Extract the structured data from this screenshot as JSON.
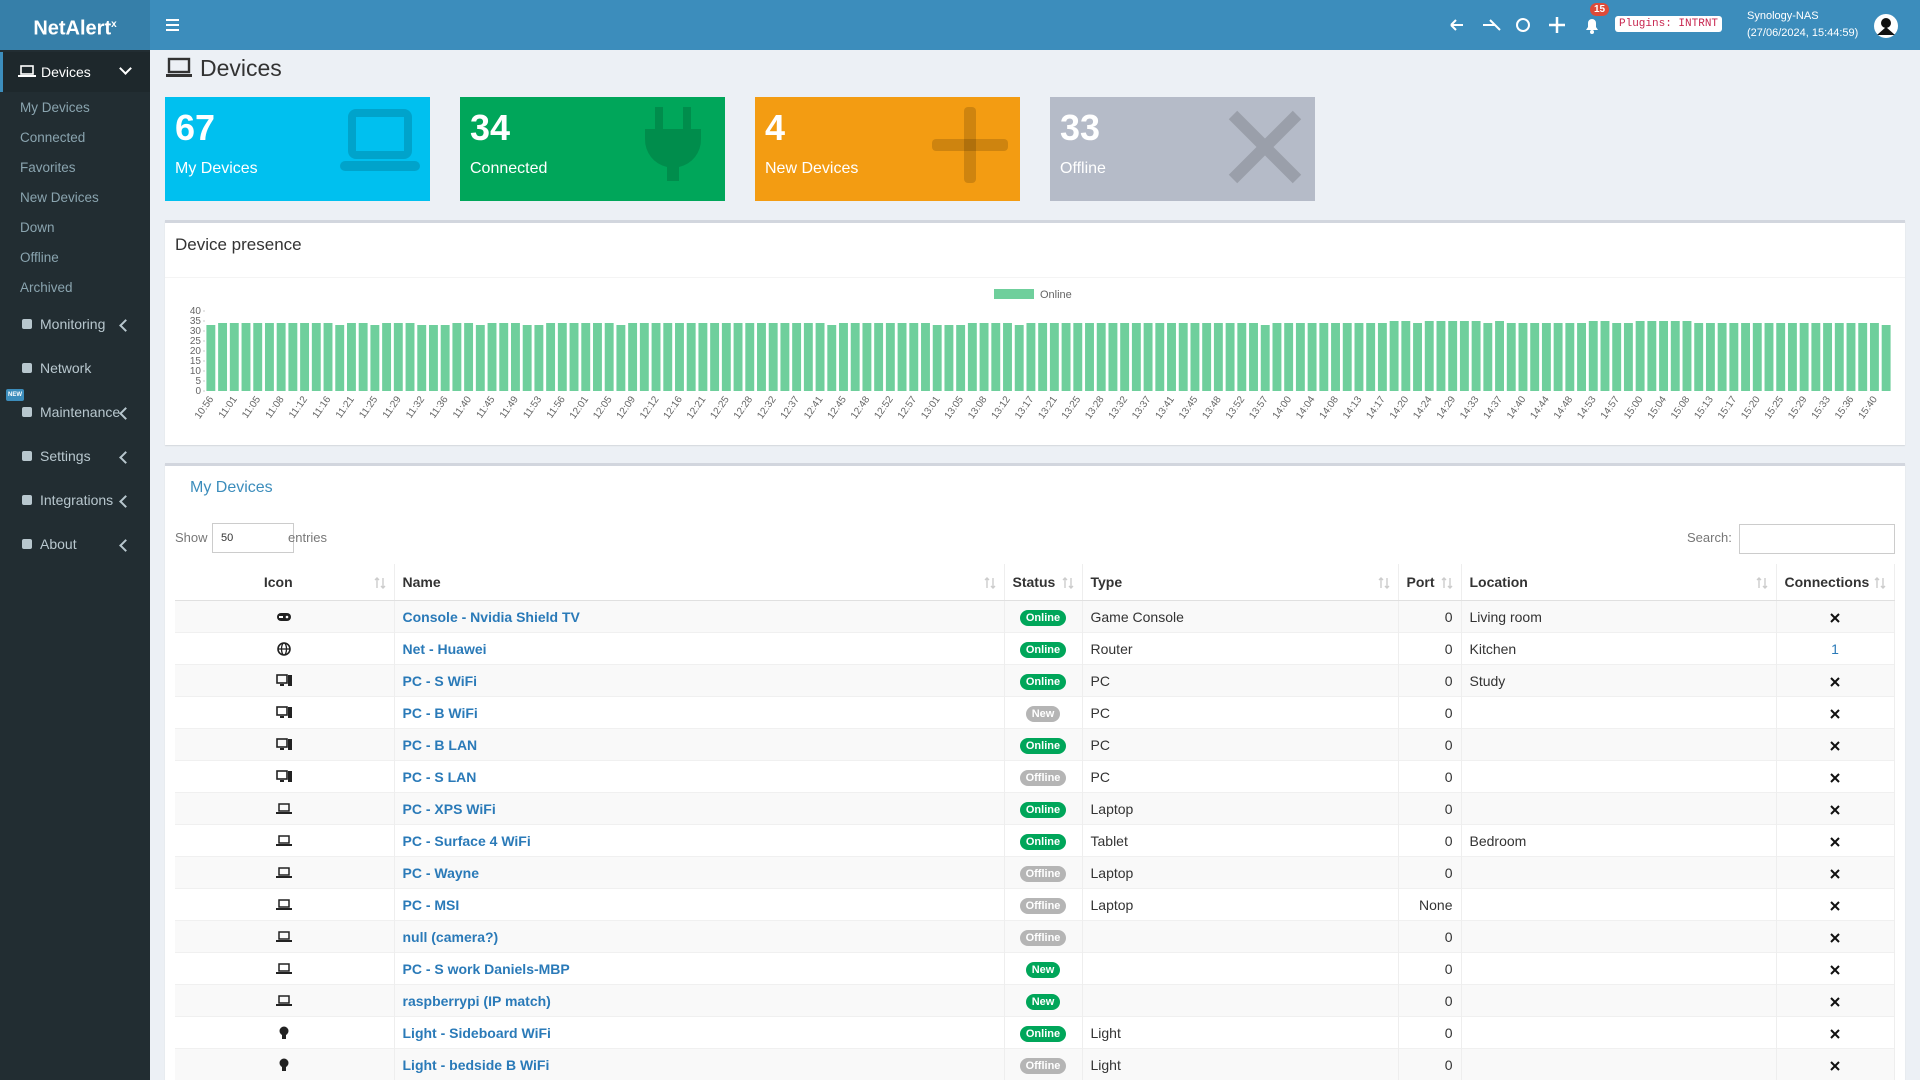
{
  "header": {
    "logo": "NetAlert",
    "logo_sup": "x",
    "notifications": 15,
    "plugins_badge": "Plugins: INTRNT",
    "host": "Synology-NAS",
    "datetime": "(27/06/2024, 15:44:59)"
  },
  "sidebar": {
    "devices": "Devices",
    "items": [
      "My Devices",
      "Connected",
      "Favorites",
      "New Devices",
      "Down",
      "Offline",
      "Archived"
    ],
    "sections": [
      "Monitoring",
      "Network",
      "Maintenance",
      "Settings",
      "Integrations",
      "About"
    ],
    "new_badge": "NEW"
  },
  "page_title": "Devices",
  "stats": [
    {
      "value": 67,
      "label": "My Devices"
    },
    {
      "value": 34,
      "label": "Connected"
    },
    {
      "value": 4,
      "label": "New Devices"
    },
    {
      "value": 33,
      "label": "Offline"
    }
  ],
  "chart_data": {
    "type": "bar",
    "title": "Device presence",
    "categories": [
      "10:56",
      null,
      "11:01",
      null,
      "11:05",
      null,
      "11:08",
      null,
      "11:12",
      null,
      "11:16",
      null,
      "11:21",
      null,
      "11:25",
      null,
      "11:29",
      null,
      "11:32",
      null,
      "11:36",
      null,
      "11:40",
      null,
      "11:45",
      null,
      "11:49",
      null,
      "11:53",
      null,
      "11:56",
      null,
      "12:01",
      null,
      "12:05",
      null,
      "12:09",
      null,
      "12:12",
      null,
      "12:16",
      null,
      "12:21",
      null,
      "12:25",
      null,
      "12:28",
      null,
      "12:32",
      null,
      "12:37",
      null,
      "12:41",
      null,
      "12:45",
      null,
      "12:48",
      null,
      "12:52",
      null,
      "12:57",
      null,
      "13:01",
      null,
      "13:05",
      null,
      "13:08",
      null,
      "13:12",
      null,
      "13:17",
      null,
      "13:21",
      null,
      "13:25",
      null,
      "13:28",
      null,
      "13:32",
      null,
      "13:37",
      null,
      "13:41",
      null,
      "13:45",
      null,
      "13:48",
      null,
      "13:52",
      null,
      "13:57",
      null,
      "14:00",
      null,
      "14:04",
      null,
      "14:08",
      null,
      "14:13",
      null,
      "14:17",
      null,
      "14:20",
      null,
      "14:24",
      null,
      "14:29",
      null,
      "14:33",
      null,
      "14:37",
      null,
      "14:40",
      null,
      "14:44",
      null,
      "14:48",
      null,
      "14:53",
      null,
      "14:57",
      null,
      "15:00",
      null,
      "15:04",
      null,
      "15:08",
      null,
      "15:13",
      null,
      "15:17",
      null,
      "15:20",
      null,
      "15:25",
      null,
      "15:29",
      null,
      "15:33",
      null,
      "15:36",
      null,
      "15:40",
      null
    ],
    "series": [
      {
        "name": "Online",
        "color": "#6fcf9c",
        "values": [
          33,
          34,
          34,
          34,
          34,
          34,
          34,
          34,
          34,
          34,
          34,
          33,
          34,
          34,
          33,
          34,
          34,
          34,
          33,
          33,
          33,
          34,
          34,
          33,
          34,
          34,
          34,
          33,
          33,
          34,
          34,
          34,
          34,
          34,
          34,
          33,
          34,
          34,
          34,
          34,
          34,
          34,
          34,
          34,
          34,
          34,
          34,
          34,
          34,
          34,
          34,
          34,
          34,
          33,
          34,
          34,
          34,
          34,
          34,
          34,
          34,
          34,
          33,
          33,
          33,
          34,
          34,
          34,
          34,
          33,
          34,
          34,
          34,
          34,
          34,
          34,
          34,
          34,
          34,
          34,
          34,
          34,
          34,
          34,
          34,
          34,
          34,
          34,
          34,
          34,
          33,
          34,
          34,
          34,
          34,
          34,
          34,
          34,
          34,
          34,
          34,
          35,
          35,
          34,
          35,
          35,
          35,
          35,
          35,
          34,
          35,
          34,
          34,
          34,
          34,
          34,
          34,
          34,
          35,
          35,
          34,
          34,
          35,
          35,
          35,
          35,
          35,
          34,
          34,
          34,
          34,
          34,
          34,
          34,
          34,
          34,
          34,
          34,
          34,
          34,
          34,
          34,
          34,
          33
        ]
      }
    ],
    "ylim": [
      0,
      40
    ],
    "yticks": [
      0,
      5,
      10,
      15,
      20,
      25,
      30,
      35,
      40
    ],
    "legend": "top"
  },
  "table": {
    "title": "My Devices",
    "show": "Show",
    "page_size": 50,
    "entries": "entries",
    "search": "Search:",
    "columns": [
      "Icon",
      "Name",
      "Status",
      "Type",
      "Port",
      "Location",
      "Connections"
    ],
    "rows": [
      {
        "name": "Console - Nvidia Shield TV",
        "status": "Online",
        "status_color": "#00a65a",
        "type": "Game Console",
        "port": 0,
        "location": "Living room",
        "connections": null
      },
      {
        "name": "Net - Huawei",
        "status": "Online",
        "status_color": "#00a65a",
        "type": "Router",
        "port": 0,
        "location": "Kitchen",
        "connections": 1
      },
      {
        "name": "PC - S WiFi",
        "status": "Online",
        "status_color": "#00a65a",
        "type": "PC",
        "port": 0,
        "location": "Study",
        "connections": null
      },
      {
        "name": "PC - B WiFi",
        "status": "New",
        "status_color": "#b5b5b5",
        "type": "PC",
        "port": 0,
        "location": null,
        "connections": null
      },
      {
        "name": "PC - B LAN",
        "status": "Online",
        "status_color": "#00a65a",
        "type": "PC",
        "port": 0,
        "location": null,
        "connections": null
      },
      {
        "name": "PC - S LAN",
        "status": "Offline",
        "status_color": "#b5b5b5",
        "type": "PC",
        "port": 0,
        "location": null,
        "connections": null
      },
      {
        "name": "PC - XPS WiFi",
        "status": "Online",
        "status_color": "#00a65a",
        "type": "Laptop",
        "port": 0,
        "location": null,
        "connections": null
      },
      {
        "name": "PC - Surface 4 WiFi",
        "status": "Online",
        "status_color": "#00a65a",
        "type": "Tablet",
        "port": 0,
        "location": "Bedroom",
        "connections": null
      },
      {
        "name": "PC - Wayne",
        "status": "Offline",
        "status_color": "#b5b5b5",
        "type": "Laptop",
        "port": 0,
        "location": null,
        "connections": null
      },
      {
        "name": "PC - MSI",
        "status": "Offline",
        "status_color": "#b5b5b5",
        "type": "Laptop",
        "port": "None",
        "location": null,
        "connections": null
      },
      {
        "name": "null (camera?)",
        "status": "Offline",
        "status_color": "#b5b5b5",
        "type": null,
        "port": 0,
        "location": null,
        "connections": null
      },
      {
        "name": "PC - S work Daniels-MBP",
        "status": "New",
        "status_color": "#00a65a",
        "type": null,
        "port": 0,
        "location": null,
        "connections": null
      },
      {
        "name": "raspberrypi (IP match)",
        "status": "New",
        "status_color": "#00a65a",
        "type": null,
        "port": 0,
        "location": null,
        "connections": null
      },
      {
        "name": "Light - Sideboard WiFi",
        "status": "Online",
        "status_color": "#00a65a",
        "type": "Light",
        "port": 0,
        "location": null,
        "connections": null
      },
      {
        "name": "Light - bedside B WiFi",
        "status": "Offline",
        "status_color": "#b5b5b5",
        "type": "Light",
        "port": 0,
        "location": null,
        "connections": null
      }
    ]
  }
}
